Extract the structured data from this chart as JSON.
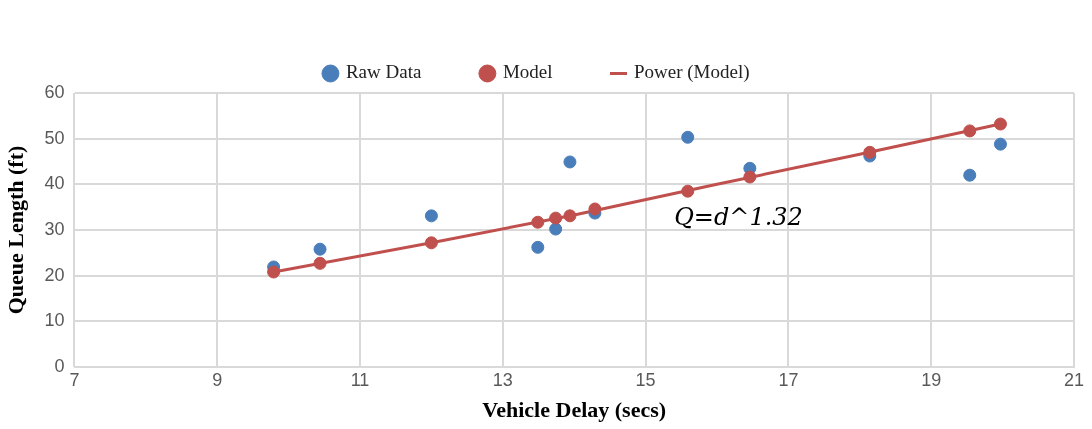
{
  "chart_data": {
    "type": "scatter",
    "xlabel": "Vehicle Delay (secs)",
    "ylabel": "Queue Length (ft)",
    "xlim": [
      7,
      21
    ],
    "xticks": [
      7,
      9,
      11,
      13,
      15,
      17,
      19,
      21
    ],
    "ylim": [
      0,
      60
    ],
    "yticks": [
      0,
      10,
      20,
      30,
      40,
      50,
      60
    ],
    "grid": true,
    "legend": "top",
    "marker": "circle",
    "annotations": [
      "Q=d^1.32"
    ],
    "series": [
      {
        "name": "Raw Data",
        "color": "#4a7ebb",
        "x": [
          9.79,
          10.44,
          12.0,
          13.49,
          13.74,
          13.94,
          14.29,
          15.59,
          16.46,
          18.14,
          19.54,
          19.97
        ],
        "values": [
          21.9,
          25.8,
          33.1,
          26.2,
          30.2,
          44.9,
          33.7,
          50.3,
          43.5,
          46.2,
          42.0,
          48.8
        ]
      },
      {
        "name": "Model",
        "color": "#c0504d",
        "x": [
          9.79,
          10.44,
          12.0,
          13.49,
          13.74,
          13.94,
          14.29,
          15.59,
          16.46,
          18.14,
          19.54,
          19.97
        ],
        "values": [
          20.8,
          22.7,
          27.2,
          31.7,
          32.6,
          33.1,
          34.6,
          38.5,
          41.6,
          47.0,
          51.7,
          53.2
        ]
      },
      {
        "name": "Power (Model)",
        "type": "line",
        "color": "#c0504d",
        "marker": "none",
        "x": [
          9.79,
          12,
          14,
          16,
          18,
          19.97
        ],
        "values": [
          20.8,
          27.2,
          33.3,
          40.0,
          46.6,
          53.2
        ]
      }
    ]
  }
}
